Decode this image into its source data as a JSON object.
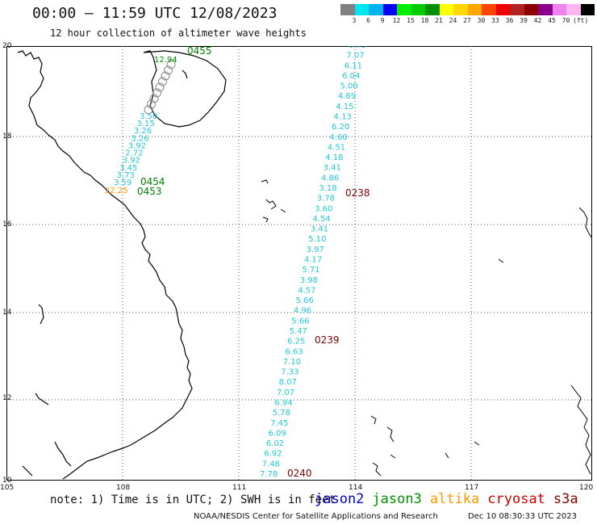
{
  "header": {
    "title": "00:00 – 11:59 UTC 12/08/2023",
    "subtitle": "12 hour collection of altimeter wave heights"
  },
  "colorbar": {
    "colors": [
      "#808080",
      "#00e5ee",
      "#00b2ee",
      "#0000ff",
      "#00ee00",
      "#00cd00",
      "#009000",
      "#ffff00",
      "#ffd700",
      "#ffa500",
      "#ff4500",
      "#ee0000",
      "#b22222",
      "#8b0000",
      "#8b008b",
      "#ee82ee",
      "#ffb6f0",
      "#000000"
    ],
    "labels": [
      "3",
      "6",
      "9",
      "12",
      "15",
      "18",
      "21",
      "24",
      "27",
      "30",
      "33",
      "36",
      "39",
      "42",
      "45",
      "70",
      "(ft)"
    ]
  },
  "map": {
    "lon_ticks": [
      "105",
      "108",
      "111",
      "114",
      "117",
      "120"
    ],
    "lat_ticks": [
      "20",
      "18",
      "16",
      "14",
      "12",
      "10"
    ],
    "coast_color": "#000000",
    "grid_style": "dotted"
  },
  "tracks": {
    "east_track": {
      "color": "#22c8d8",
      "values": [
        "6.73",
        "7.07",
        "6.11",
        "6.04",
        "5.00",
        "4.69",
        "4.15",
        "4.13",
        "6.20",
        "4.60",
        "4.51",
        "4.18",
        "3.41",
        "4.86",
        "3.18",
        "3.78",
        "3.60",
        "4.54",
        "3.41",
        "5.10",
        "3.97",
        "4.17",
        "5.71",
        "3.98",
        "4.57",
        "5.66",
        "4.96",
        "5.66",
        "5.47",
        "6.25",
        "6.63",
        "7.10",
        "7.33",
        "8.07",
        "7.07",
        "6.94",
        "5.78",
        "7.45",
        "6.09",
        "6.02",
        "6.92",
        "7.48",
        "7.78"
      ]
    },
    "west_track": {
      "values_cyan": [
        "3.59",
        "3.73",
        "3.45",
        "3.92",
        "2.72",
        "3.92",
        "3.26",
        "3.26",
        "3.15",
        "3.50"
      ],
      "value_orange": "22.25",
      "value_green": "12.94"
    }
  },
  "passes": [
    {
      "label": "0238",
      "color": "#7a0000"
    },
    {
      "label": "0239",
      "color": "#7a0000"
    },
    {
      "label": "0240",
      "color": "#7a0000"
    },
    {
      "label": "0453",
      "color": "#008000"
    },
    {
      "label": "0454",
      "color": "#008000"
    },
    {
      "label": "0455",
      "color": "#008000"
    }
  ],
  "footer": {
    "note": "note: 1) Time is in UTC; 2) SWH is in feet",
    "legend": [
      {
        "label": "jason2",
        "color": "#0000cc"
      },
      {
        "label": "jason3",
        "color": "#009000"
      },
      {
        "label": "altika",
        "color": "#ff9900"
      },
      {
        "label": "cryosat",
        "color": "#cc0000"
      },
      {
        "label": "s3a",
        "color": "#8b0000"
      }
    ],
    "credit": "NOAA/NESDIS Center for Satellite Applications and Research",
    "timestamp": "Dec 10 08:30:33 UTC 2023"
  }
}
